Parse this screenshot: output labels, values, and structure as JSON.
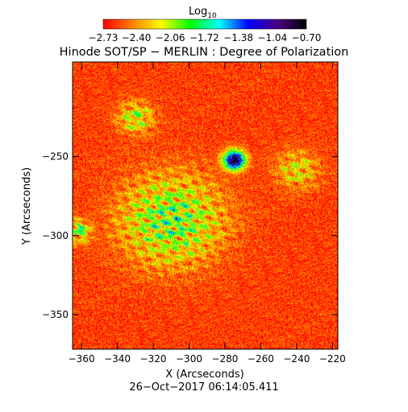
{
  "chart_data": {
    "type": "heatmap",
    "title": "Hinode SOT/SP − MERLIN : Degree of Polarization",
    "xlabel": "X (Arcseconds)",
    "ylabel": "Y (Arcseconds)",
    "timestamp": "26−Oct−2017 06:14:05.411",
    "xlim": [
      -365,
      -217
    ],
    "ylim": [
      -372,
      -190
    ],
    "x_ticks": [
      -360,
      -340,
      -320,
      -300,
      -280,
      -260,
      -240,
      -220
    ],
    "x_tick_labels": [
      "−360",
      "−340",
      "−320",
      "−300",
      "−280",
      "−260",
      "−240",
      "−220"
    ],
    "y_ticks": [
      -250,
      -300,
      -350
    ],
    "y_tick_labels": [
      "−250",
      "−300",
      "−350"
    ],
    "colorbar": {
      "title": "Log",
      "title_subscript": "10",
      "range": [
        -2.73,
        -0.7
      ],
      "ticks": [
        -2.73,
        -2.4,
        -2.06,
        -1.72,
        -1.38,
        -1.04,
        -0.7
      ],
      "tick_labels": [
        "−2.73",
        "−2.40",
        "−2.06",
        "−1.72",
        "−1.38",
        "−1.04",
        "−0.70"
      ],
      "colormap": [
        "#ff0000",
        "#ff8000",
        "#ffff00",
        "#00ff00",
        "#00ffff",
        "#0000ff",
        "#4b0082",
        "#000000"
      ]
    },
    "features": [
      {
        "name": "sunspot",
        "x": -275,
        "y": -252,
        "level": -0.75,
        "radius": 6
      },
      {
        "name": "network-center",
        "x": -310,
        "y": -290,
        "level": -1.3,
        "radius": 28
      },
      {
        "name": "network-left",
        "x": -362,
        "y": -297,
        "level": -1.25,
        "radius": 7
      },
      {
        "name": "network-upper",
        "x": -330,
        "y": -225,
        "level": -1.6,
        "radius": 10
      },
      {
        "name": "network-right",
        "x": -240,
        "y": -258,
        "level": -1.8,
        "radius": 12
      }
    ],
    "background_level": -2.6
  }
}
